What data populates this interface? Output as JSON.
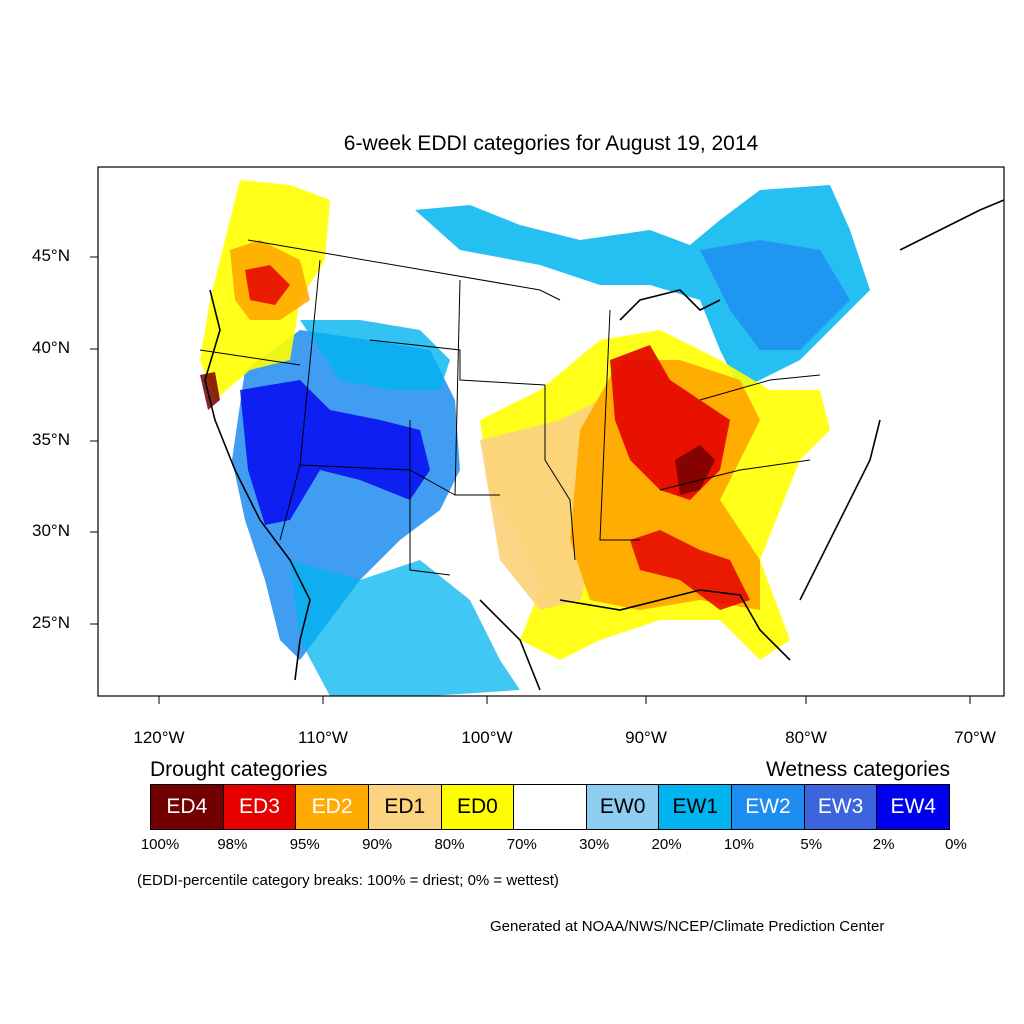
{
  "title": "6-week EDDI categories for August 19, 2014",
  "axes": {
    "lat_labels": [
      "45°N",
      "40°N",
      "35°N",
      "30°N",
      "25°N"
    ],
    "lon_labels": [
      "120°W",
      "110°W",
      "100°W",
      "90°W",
      "80°W",
      "70°W"
    ]
  },
  "legend": {
    "drought_title": "Drought categories",
    "wetness_title": "Wetness categories",
    "categories": [
      {
        "label": "ED4",
        "color": "#730000",
        "text_color": "#ffffff"
      },
      {
        "label": "ED3",
        "color": "#e60000",
        "text_color": "#ffffff"
      },
      {
        "label": "ED2",
        "color": "#ffaa00",
        "text_color": "#ffffff"
      },
      {
        "label": "ED1",
        "color": "#fcd37f",
        "text_color": "#000000"
      },
      {
        "label": "ED0",
        "color": "#ffff00",
        "text_color": "#000000"
      },
      {
        "label": "",
        "color": "#ffffff",
        "text_color": "#000000"
      },
      {
        "label": "EW0",
        "color": "#8fcdf0",
        "text_color": "#000000"
      },
      {
        "label": "EW1",
        "color": "#00b4f0",
        "text_color": "#000000"
      },
      {
        "label": "EW2",
        "color": "#1e8cf0",
        "text_color": "#ffffff"
      },
      {
        "label": "EW3",
        "color": "#3c64dc",
        "text_color": "#ffffff"
      },
      {
        "label": "EW4",
        "color": "#0000f0",
        "text_color": "#ffffff"
      }
    ],
    "percentiles": [
      "100%",
      "98%",
      "95%",
      "90%",
      "80%",
      "70%",
      "30%",
      "20%",
      "10%",
      "5%",
      "2%",
      "0%"
    ]
  },
  "note": "(EDDI-percentile category breaks: 100% = driest; 0% = wettest)",
  "credit": "Generated at NOAA/NWS/NCEP/Climate Prediction Center"
}
